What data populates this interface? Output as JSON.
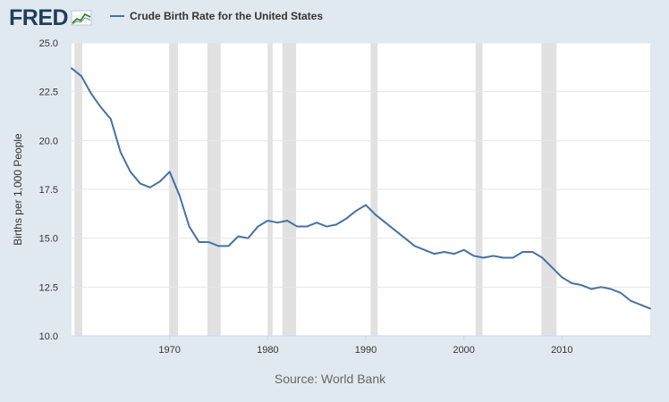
{
  "header": {
    "logo_text": "FRED",
    "logo_icon": "line-graph-icon",
    "legend_label": "Crude Birth Rate for the United States"
  },
  "colors": {
    "page_background": "#e1e9f0",
    "plot_background": "#ffffff",
    "series_line": "#4572a7",
    "recession_shading": "#e1e1e1",
    "logo": "#1f3e5c"
  },
  "source": "Source: World Bank",
  "chart_data": {
    "type": "line",
    "title": "Crude Birth Rate for the United States",
    "xlabel": "",
    "ylabel": "Births per 1,000 People",
    "xlim": [
      1960,
      2019
    ],
    "ylim": [
      10,
      25
    ],
    "x_ticks": [
      1970,
      1980,
      1990,
      2000,
      2010
    ],
    "y_ticks": [
      10.0,
      12.5,
      15.0,
      17.5,
      20.0,
      22.5,
      25.0
    ],
    "y_tick_labels": [
      "10.0",
      "12.5",
      "15.0",
      "17.5",
      "20.0",
      "22.5",
      "25.0"
    ],
    "grid": "horizontal",
    "recessions": [
      [
        1960.3,
        1961.1
      ],
      [
        1969.95,
        1970.85
      ],
      [
        1973.85,
        1975.2
      ],
      [
        1980.0,
        1980.5
      ],
      [
        1981.5,
        1982.9
      ],
      [
        1990.5,
        1991.2
      ],
      [
        2001.2,
        2001.9
      ],
      [
        2007.9,
        2009.45
      ]
    ],
    "series": [
      {
        "name": "Crude Birth Rate for the United States",
        "x": [
          1960,
          1961,
          1962,
          1963,
          1964,
          1965,
          1966,
          1967,
          1968,
          1969,
          1970,
          1971,
          1972,
          1973,
          1974,
          1975,
          1976,
          1977,
          1978,
          1979,
          1980,
          1981,
          1982,
          1983,
          1984,
          1985,
          1986,
          1987,
          1988,
          1989,
          1990,
          1991,
          1992,
          1993,
          1994,
          1995,
          1996,
          1997,
          1998,
          1999,
          2000,
          2001,
          2002,
          2003,
          2004,
          2005,
          2006,
          2007,
          2008,
          2009,
          2010,
          2011,
          2012,
          2013,
          2014,
          2015,
          2016,
          2017,
          2018,
          2019
        ],
        "values": [
          23.7,
          23.3,
          22.4,
          21.7,
          21.1,
          19.4,
          18.4,
          17.8,
          17.6,
          17.9,
          18.4,
          17.2,
          15.6,
          14.8,
          14.8,
          14.6,
          14.6,
          15.1,
          15.0,
          15.6,
          15.9,
          15.8,
          15.9,
          15.6,
          15.6,
          15.8,
          15.6,
          15.7,
          16.0,
          16.4,
          16.7,
          16.2,
          15.8,
          15.4,
          15.0,
          14.6,
          14.4,
          14.2,
          14.3,
          14.2,
          14.4,
          14.1,
          14.0,
          14.1,
          14.0,
          14.0,
          14.3,
          14.3,
          14.0,
          13.5,
          13.0,
          12.7,
          12.6,
          12.4,
          12.5,
          12.4,
          12.2,
          11.8,
          11.6,
          11.4
        ]
      }
    ]
  }
}
